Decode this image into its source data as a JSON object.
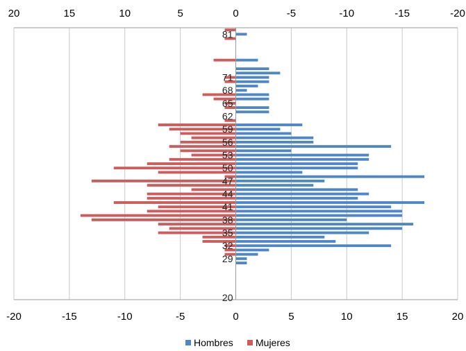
{
  "chart_data": {
    "type": "bar",
    "orientation": "horizontal",
    "layout": "population-pyramid",
    "xlim": [
      -20,
      20
    ],
    "ticks": [
      -20,
      -15,
      -10,
      -5,
      0,
      5,
      10,
      15,
      20
    ],
    "top_tick_labels": [
      "20",
      "15",
      "10",
      "5",
      "0",
      "-5",
      "-10",
      "-15",
      "-20"
    ],
    "bottom_tick_labels": [
      "-20",
      "-15",
      "-10",
      "-5",
      "0",
      "5",
      "10",
      "15",
      "20"
    ],
    "age_labels": [
      81,
      71,
      68,
      65,
      62,
      59,
      56,
      53,
      50,
      47,
      44,
      41,
      38,
      35,
      32,
      29,
      20
    ],
    "ages": [
      82,
      81,
      80,
      79,
      78,
      77,
      76,
      75,
      74,
      73,
      72,
      71,
      70,
      69,
      68,
      67,
      66,
      65,
      64,
      63,
      62,
      61,
      60,
      59,
      58,
      57,
      56,
      55,
      54,
      53,
      52,
      51,
      50,
      49,
      48,
      47,
      46,
      45,
      44,
      43,
      42,
      41,
      40,
      39,
      38,
      37,
      36,
      35,
      34,
      33,
      32,
      31,
      30,
      29,
      28,
      27,
      26,
      25,
      24,
      23,
      22,
      21,
      20
    ],
    "series": [
      {
        "name": "Hombres",
        "color": "#4f86c6",
        "values": [
          0,
          1,
          0,
          0,
          0,
          0,
          0,
          2,
          0,
          3,
          4,
          3,
          3,
          2,
          1,
          3,
          3,
          0,
          3,
          3,
          0,
          0,
          6,
          4,
          5,
          7,
          7,
          14,
          5,
          12,
          12,
          11,
          11,
          6,
          17,
          8,
          7,
          11,
          12,
          11,
          17,
          14,
          15,
          15,
          10,
          16,
          15,
          12,
          8,
          9,
          14,
          3,
          2,
          1,
          1,
          0,
          0,
          0,
          0,
          0,
          0,
          0,
          0
        ]
      },
      {
        "name": "Mujeres",
        "color": "#cd5c5c",
        "values": [
          -1,
          0,
          -1,
          0,
          0,
          0,
          0,
          -2,
          0,
          0,
          0,
          -1,
          -1,
          0,
          0,
          -3,
          -2,
          -1,
          -1,
          0,
          0,
          -1,
          -7,
          -6,
          -5,
          -4,
          -5,
          -6,
          -5,
          -4,
          -6,
          -8,
          -11,
          -7,
          -1,
          -13,
          -8,
          -4,
          -8,
          -8,
          -11,
          -7,
          -8,
          -14,
          -13,
          -7,
          -6,
          -7,
          -3,
          -3,
          -1,
          -1,
          -1,
          0,
          0,
          0,
          0,
          0,
          0,
          0,
          0,
          0,
          0
        ]
      }
    ],
    "legend_position": "bottom",
    "grid": true
  }
}
